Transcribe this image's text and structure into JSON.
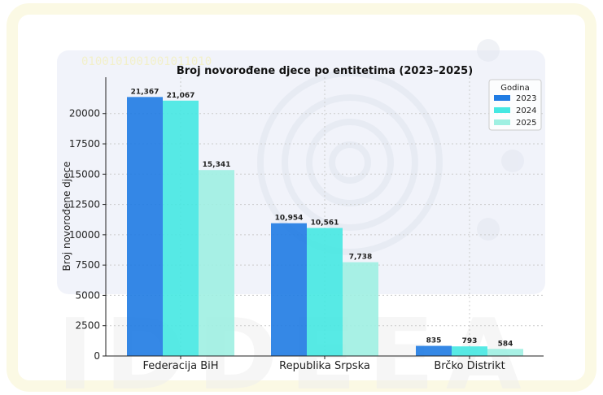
{
  "chart_data": {
    "type": "bar",
    "title": "Broj novorođene djece po entitetima (2023–2025)",
    "xlabel": "",
    "ylabel": "Broj novorođene djece",
    "categories": [
      "Federacija BiH",
      "Republika Srpska",
      "Brčko Distrikt"
    ],
    "series": [
      {
        "name": "2023",
        "color": "#1f7be3",
        "values": [
          21367,
          10954,
          835
        ],
        "labels": [
          "21,367",
          "10,954",
          "835"
        ]
      },
      {
        "name": "2024",
        "color": "#45e8e2",
        "values": [
          21067,
          10561,
          793
        ],
        "labels": [
          "21,067",
          "10,561",
          "793"
        ]
      },
      {
        "name": "2025",
        "color": "#9ff0e2",
        "values": [
          15341,
          7738,
          584
        ],
        "labels": [
          "15,341",
          "7,738",
          "584"
        ]
      }
    ],
    "ylim": [
      0,
      23000
    ],
    "yticks": [
      0,
      2500,
      5000,
      7500,
      10000,
      12500,
      15000,
      17500,
      20000
    ],
    "grid": true,
    "legend": {
      "title": "Godina",
      "position": "top-right"
    }
  },
  "watermark": {
    "text": "IDDEEA",
    "binary": "0100101001001011010"
  }
}
